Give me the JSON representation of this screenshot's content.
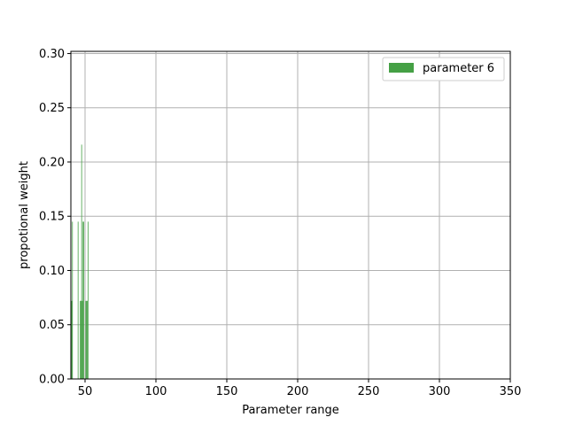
{
  "chart_data": {
    "type": "bar",
    "xlabel": "Parameter range",
    "ylabel": "propotional weight",
    "xlim": [
      40,
      350
    ],
    "ylim": [
      0,
      0.302
    ],
    "xticks": [
      50,
      100,
      150,
      200,
      250,
      300,
      350
    ],
    "yticks": [
      0.0,
      0.05,
      0.1,
      0.15,
      0.2,
      0.25,
      0.3
    ],
    "ytick_labels": [
      "0.00",
      "0.05",
      "0.10",
      "0.15",
      "0.20",
      "0.25",
      "0.30"
    ],
    "xtick_labels": [
      "50",
      "100",
      "150",
      "200",
      "250",
      "300",
      "350"
    ],
    "grid": true,
    "legend_position": "top-right",
    "color": "#45a045",
    "series": [
      {
        "name": "parameter 6",
        "bin_width": 0.5,
        "x": [
          40.6,
          41.1,
          45.1,
          46.6,
          47.1,
          47.6,
          48.1,
          48.6,
          49.1,
          50.6,
          51.1,
          51.6,
          52.1
        ],
        "values": [
          0.072,
          0.145,
          0.145,
          0.072,
          0.072,
          0.216,
          0.072,
          0.145,
          0.145,
          0.072,
          0.072,
          0.072,
          0.145
        ]
      }
    ]
  }
}
